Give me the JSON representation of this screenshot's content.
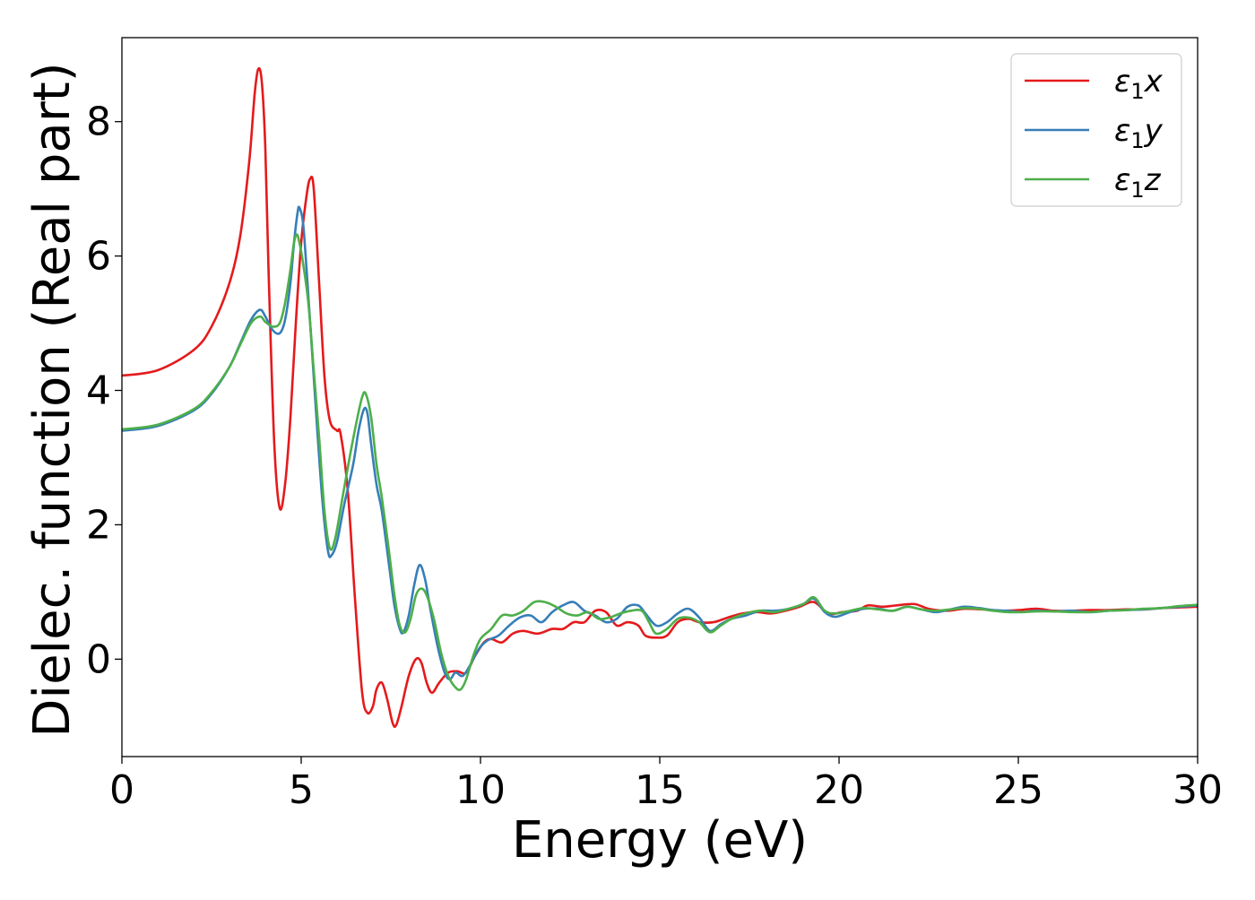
{
  "chart_data": {
    "type": "line",
    "title": "",
    "xlabel": "Energy (eV)",
    "ylabel": "Dielec. function (Real part)",
    "xlim": [
      0,
      30
    ],
    "ylim": [
      -1.45,
      9.25
    ],
    "xticks": [
      0,
      5,
      10,
      15,
      20,
      25,
      30
    ],
    "xtick_labels": [
      "0",
      "5",
      "10",
      "15",
      "20",
      "25",
      "30"
    ],
    "yticks": [
      0,
      2,
      4,
      6,
      8
    ],
    "ytick_labels": [
      "0",
      "2",
      "4",
      "6",
      "8"
    ],
    "grid": false,
    "legend_position": "top-right",
    "series": [
      {
        "name": "ε₁x",
        "legend_symbol": "ε",
        "legend_sub": "1",
        "legend_var": "x",
        "color": "#e41a1c",
        "points": [
          [
            0,
            4.22
          ],
          [
            1,
            4.3
          ],
          [
            2,
            4.6
          ],
          [
            2.5,
            4.95
          ],
          [
            3,
            5.6
          ],
          [
            3.3,
            6.3
          ],
          [
            3.55,
            7.4
          ],
          [
            3.7,
            8.4
          ],
          [
            3.8,
            8.78
          ],
          [
            3.9,
            8.6
          ],
          [
            4.0,
            7.6
          ],
          [
            4.1,
            5.6
          ],
          [
            4.25,
            3.2
          ],
          [
            4.4,
            2.25
          ],
          [
            4.55,
            2.6
          ],
          [
            4.7,
            3.6
          ],
          [
            4.85,
            5.0
          ],
          [
            5.0,
            6.2
          ],
          [
            5.15,
            6.9
          ],
          [
            5.25,
            7.15
          ],
          [
            5.35,
            7.0
          ],
          [
            5.5,
            5.6
          ],
          [
            5.65,
            4.2
          ],
          [
            5.8,
            3.55
          ],
          [
            6.0,
            3.4
          ],
          [
            6.1,
            3.35
          ],
          [
            6.3,
            2.5
          ],
          [
            6.5,
            0.9
          ],
          [
            6.7,
            -0.5
          ],
          [
            6.85,
            -0.8
          ],
          [
            7.0,
            -0.7
          ],
          [
            7.1,
            -0.45
          ],
          [
            7.25,
            -0.35
          ],
          [
            7.4,
            -0.6
          ],
          [
            7.55,
            -0.95
          ],
          [
            7.65,
            -0.98
          ],
          [
            7.8,
            -0.7
          ],
          [
            8.0,
            -0.25
          ],
          [
            8.2,
            0.0
          ],
          [
            8.35,
            -0.05
          ],
          [
            8.5,
            -0.35
          ],
          [
            8.65,
            -0.5
          ],
          [
            8.85,
            -0.35
          ],
          [
            9.1,
            -0.2
          ],
          [
            9.35,
            -0.18
          ],
          [
            9.6,
            -0.2
          ],
          [
            9.85,
            0.05
          ],
          [
            10.1,
            0.25
          ],
          [
            10.3,
            0.3
          ],
          [
            10.6,
            0.25
          ],
          [
            10.9,
            0.38
          ],
          [
            11.2,
            0.42
          ],
          [
            11.6,
            0.38
          ],
          [
            12.0,
            0.45
          ],
          [
            12.3,
            0.45
          ],
          [
            12.6,
            0.55
          ],
          [
            12.9,
            0.55
          ],
          [
            13.2,
            0.72
          ],
          [
            13.5,
            0.7
          ],
          [
            13.8,
            0.5
          ],
          [
            14.1,
            0.55
          ],
          [
            14.4,
            0.5
          ],
          [
            14.6,
            0.35
          ],
          [
            14.9,
            0.32
          ],
          [
            15.2,
            0.35
          ],
          [
            15.5,
            0.55
          ],
          [
            15.8,
            0.6
          ],
          [
            16.1,
            0.55
          ],
          [
            16.5,
            0.55
          ],
          [
            16.9,
            0.62
          ],
          [
            17.3,
            0.68
          ],
          [
            17.7,
            0.7
          ],
          [
            18.1,
            0.68
          ],
          [
            18.5,
            0.72
          ],
          [
            18.9,
            0.78
          ],
          [
            19.3,
            0.85
          ],
          [
            19.7,
            0.68
          ],
          [
            20.1,
            0.7
          ],
          [
            20.5,
            0.72
          ],
          [
            20.8,
            0.8
          ],
          [
            21.2,
            0.78
          ],
          [
            21.6,
            0.8
          ],
          [
            22.1,
            0.82
          ],
          [
            22.5,
            0.75
          ],
          [
            23.0,
            0.72
          ],
          [
            23.5,
            0.75
          ],
          [
            24.0,
            0.74
          ],
          [
            24.5,
            0.72
          ],
          [
            25.0,
            0.73
          ],
          [
            25.5,
            0.75
          ],
          [
            26.0,
            0.72
          ],
          [
            26.5,
            0.72
          ],
          [
            27.0,
            0.73
          ],
          [
            27.5,
            0.73
          ],
          [
            28.0,
            0.74
          ],
          [
            28.5,
            0.74
          ],
          [
            29.0,
            0.76
          ],
          [
            29.5,
            0.77
          ],
          [
            30,
            0.78
          ]
        ]
      },
      {
        "name": "ε₁y",
        "legend_symbol": "ε",
        "legend_sub": "1",
        "legend_var": "y",
        "color": "#377eb8",
        "points": [
          [
            0,
            3.4
          ],
          [
            1,
            3.47
          ],
          [
            2,
            3.7
          ],
          [
            2.5,
            3.95
          ],
          [
            3,
            4.35
          ],
          [
            3.3,
            4.7
          ],
          [
            3.6,
            5.05
          ],
          [
            3.85,
            5.2
          ],
          [
            4.0,
            5.1
          ],
          [
            4.2,
            4.9
          ],
          [
            4.4,
            4.85
          ],
          [
            4.55,
            5.05
          ],
          [
            4.7,
            5.6
          ],
          [
            4.8,
            6.2
          ],
          [
            4.9,
            6.65
          ],
          [
            4.95,
            6.72
          ],
          [
            5.05,
            6.5
          ],
          [
            5.15,
            5.8
          ],
          [
            5.3,
            4.6
          ],
          [
            5.45,
            3.4
          ],
          [
            5.6,
            2.3
          ],
          [
            5.75,
            1.6
          ],
          [
            5.85,
            1.55
          ],
          [
            6.0,
            1.75
          ],
          [
            6.2,
            2.3
          ],
          [
            6.45,
            2.9
          ],
          [
            6.6,
            3.4
          ],
          [
            6.75,
            3.72
          ],
          [
            6.85,
            3.65
          ],
          [
            6.95,
            3.2
          ],
          [
            7.1,
            2.6
          ],
          [
            7.25,
            2.2
          ],
          [
            7.45,
            1.4
          ],
          [
            7.6,
            0.8
          ],
          [
            7.75,
            0.45
          ],
          [
            7.85,
            0.4
          ],
          [
            8.0,
            0.65
          ],
          [
            8.15,
            1.1
          ],
          [
            8.3,
            1.4
          ],
          [
            8.45,
            1.2
          ],
          [
            8.6,
            0.75
          ],
          [
            8.8,
            0.2
          ],
          [
            9.0,
            -0.2
          ],
          [
            9.15,
            -0.3
          ],
          [
            9.3,
            -0.2
          ],
          [
            9.5,
            -0.25
          ],
          [
            9.7,
            -0.1
          ],
          [
            9.95,
            0.15
          ],
          [
            10.2,
            0.28
          ],
          [
            10.5,
            0.35
          ],
          [
            10.8,
            0.5
          ],
          [
            11.1,
            0.62
          ],
          [
            11.4,
            0.65
          ],
          [
            11.7,
            0.55
          ],
          [
            12.0,
            0.7
          ],
          [
            12.3,
            0.8
          ],
          [
            12.6,
            0.85
          ],
          [
            12.9,
            0.72
          ],
          [
            13.2,
            0.65
          ],
          [
            13.5,
            0.55
          ],
          [
            13.8,
            0.6
          ],
          [
            14.1,
            0.78
          ],
          [
            14.4,
            0.8
          ],
          [
            14.6,
            0.68
          ],
          [
            14.9,
            0.5
          ],
          [
            15.2,
            0.55
          ],
          [
            15.5,
            0.68
          ],
          [
            15.8,
            0.75
          ],
          [
            16.1,
            0.62
          ],
          [
            16.4,
            0.42
          ],
          [
            16.7,
            0.52
          ],
          [
            17.0,
            0.6
          ],
          [
            17.4,
            0.65
          ],
          [
            17.8,
            0.72
          ],
          [
            18.2,
            0.72
          ],
          [
            18.6,
            0.75
          ],
          [
            19.0,
            0.82
          ],
          [
            19.3,
            0.9
          ],
          [
            19.6,
            0.7
          ],
          [
            19.9,
            0.63
          ],
          [
            20.3,
            0.7
          ],
          [
            20.7,
            0.75
          ],
          [
            21.1,
            0.75
          ],
          [
            21.5,
            0.72
          ],
          [
            21.9,
            0.78
          ],
          [
            22.3,
            0.74
          ],
          [
            22.7,
            0.7
          ],
          [
            23.1,
            0.74
          ],
          [
            23.5,
            0.78
          ],
          [
            23.9,
            0.76
          ],
          [
            24.3,
            0.73
          ],
          [
            24.7,
            0.72
          ],
          [
            25.1,
            0.7
          ],
          [
            25.5,
            0.72
          ],
          [
            26.0,
            0.71
          ],
          [
            26.5,
            0.72
          ],
          [
            27.0,
            0.7
          ],
          [
            27.5,
            0.72
          ],
          [
            28.0,
            0.73
          ],
          [
            28.5,
            0.74
          ],
          [
            29.0,
            0.76
          ],
          [
            29.5,
            0.78
          ],
          [
            30,
            0.8
          ]
        ]
      },
      {
        "name": "ε₁z",
        "legend_symbol": "ε",
        "legend_sub": "1",
        "legend_var": "z",
        "color": "#4daf4a",
        "points": [
          [
            0,
            3.42
          ],
          [
            1,
            3.49
          ],
          [
            2,
            3.72
          ],
          [
            2.5,
            3.97
          ],
          [
            3,
            4.35
          ],
          [
            3.3,
            4.68
          ],
          [
            3.6,
            5.0
          ],
          [
            3.85,
            5.1
          ],
          [
            4.0,
            5.02
          ],
          [
            4.2,
            4.95
          ],
          [
            4.4,
            5.0
          ],
          [
            4.55,
            5.3
          ],
          [
            4.7,
            5.8
          ],
          [
            4.8,
            6.2
          ],
          [
            4.88,
            6.32
          ],
          [
            4.95,
            6.2
          ],
          [
            5.05,
            5.9
          ],
          [
            5.2,
            5.3
          ],
          [
            5.35,
            4.3
          ],
          [
            5.5,
            3.3
          ],
          [
            5.65,
            2.2
          ],
          [
            5.8,
            1.65
          ],
          [
            5.95,
            1.8
          ],
          [
            6.15,
            2.4
          ],
          [
            6.35,
            3.0
          ],
          [
            6.55,
            3.55
          ],
          [
            6.7,
            3.9
          ],
          [
            6.8,
            3.95
          ],
          [
            6.95,
            3.6
          ],
          [
            7.1,
            2.9
          ],
          [
            7.25,
            2.4
          ],
          [
            7.45,
            1.6
          ],
          [
            7.6,
            0.95
          ],
          [
            7.75,
            0.5
          ],
          [
            7.9,
            0.4
          ],
          [
            8.05,
            0.6
          ],
          [
            8.2,
            0.95
          ],
          [
            8.35,
            1.05
          ],
          [
            8.5,
            0.95
          ],
          [
            8.7,
            0.6
          ],
          [
            8.9,
            0.1
          ],
          [
            9.1,
            -0.25
          ],
          [
            9.3,
            -0.42
          ],
          [
            9.45,
            -0.45
          ],
          [
            9.6,
            -0.3
          ],
          [
            9.8,
            0.05
          ],
          [
            10.0,
            0.3
          ],
          [
            10.3,
            0.45
          ],
          [
            10.6,
            0.65
          ],
          [
            10.9,
            0.65
          ],
          [
            11.2,
            0.72
          ],
          [
            11.5,
            0.85
          ],
          [
            11.8,
            0.85
          ],
          [
            12.1,
            0.78
          ],
          [
            12.4,
            0.68
          ],
          [
            12.7,
            0.65
          ],
          [
            13.0,
            0.7
          ],
          [
            13.3,
            0.6
          ],
          [
            13.6,
            0.62
          ],
          [
            13.9,
            0.68
          ],
          [
            14.2,
            0.72
          ],
          [
            14.5,
            0.72
          ],
          [
            14.7,
            0.55
          ],
          [
            14.9,
            0.38
          ],
          [
            15.2,
            0.45
          ],
          [
            15.5,
            0.6
          ],
          [
            15.8,
            0.62
          ],
          [
            16.1,
            0.55
          ],
          [
            16.4,
            0.4
          ],
          [
            16.7,
            0.5
          ],
          [
            17.0,
            0.6
          ],
          [
            17.4,
            0.68
          ],
          [
            17.8,
            0.72
          ],
          [
            18.2,
            0.7
          ],
          [
            18.6,
            0.75
          ],
          [
            19.0,
            0.82
          ],
          [
            19.3,
            0.92
          ],
          [
            19.6,
            0.72
          ],
          [
            19.9,
            0.68
          ],
          [
            20.3,
            0.72
          ],
          [
            20.7,
            0.76
          ],
          [
            21.1,
            0.74
          ],
          [
            21.5,
            0.72
          ],
          [
            21.9,
            0.78
          ],
          [
            22.3,
            0.74
          ],
          [
            22.7,
            0.72
          ],
          [
            23.1,
            0.74
          ],
          [
            23.5,
            0.76
          ],
          [
            23.9,
            0.75
          ],
          [
            24.3,
            0.72
          ],
          [
            24.7,
            0.7
          ],
          [
            25.1,
            0.7
          ],
          [
            25.5,
            0.71
          ],
          [
            26.0,
            0.71
          ],
          [
            26.5,
            0.7
          ],
          [
            27.0,
            0.7
          ],
          [
            27.5,
            0.72
          ],
          [
            28.0,
            0.73
          ],
          [
            28.5,
            0.75
          ],
          [
            29.0,
            0.76
          ],
          [
            29.5,
            0.79
          ],
          [
            30,
            0.81
          ]
        ]
      }
    ]
  }
}
